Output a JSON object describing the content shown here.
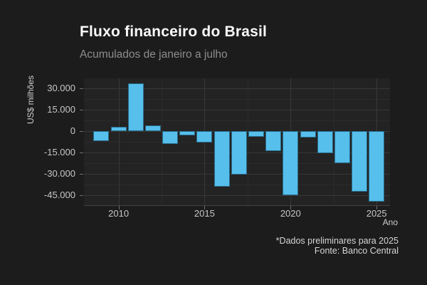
{
  "header": {
    "title": "Fluxo financeiro do Brasil",
    "subtitle": "Acumulados de janeiro a julho"
  },
  "footer": {
    "note": "*Dados preliminares para 2025",
    "source": "Fonte: Banco Central"
  },
  "chart_data": {
    "type": "bar",
    "title": "Fluxo financeiro do Brasil",
    "subtitle": "Acumulados de janeiro a julho",
    "xlabel": "Ano",
    "ylabel": "US$ milhões",
    "categories": [
      2009,
      2010,
      2011,
      2012,
      2013,
      2014,
      2015,
      2016,
      2017,
      2018,
      2019,
      2020,
      2021,
      2022,
      2023,
      2024,
      2025
    ],
    "values": [
      -7200,
      3200,
      33700,
      4000,
      -9100,
      -2900,
      -7900,
      -39200,
      -30800,
      -3900,
      -13900,
      -45400,
      -4500,
      -15600,
      -22700,
      -42900,
      -49600
    ],
    "unit": "US$ milhões",
    "ylim": [
      -52500,
      37500
    ],
    "y_major_ticks": [
      30000,
      15000,
      0,
      -15000,
      -30000,
      -45000
    ],
    "y_tick_labels": [
      "30.000",
      "15.000",
      "0",
      "-15.000",
      "-30.000",
      "-45.000"
    ],
    "y_minor_ticks": [
      22500,
      7500,
      -7500,
      -22500,
      -37500
    ],
    "x_major_ticks": [
      2010,
      2015,
      2020,
      2025
    ],
    "x_tick_labels": [
      "2010",
      "2015",
      "2020",
      "2025"
    ],
    "x_minor_ticks": [
      2012.5,
      2017.5,
      2022.5
    ],
    "grid": true,
    "legend": false,
    "bar_color": "#56bfec",
    "background_color": "#1c1c1c",
    "panel_color": "#232323",
    "annotations": [
      "*Dados preliminares para 2025",
      "Fonte: Banco Central"
    ]
  }
}
